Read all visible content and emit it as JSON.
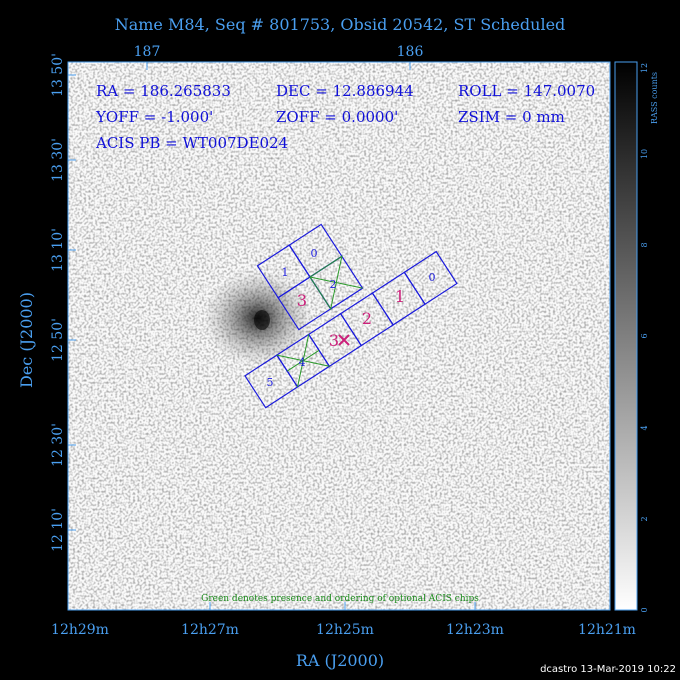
{
  "title": "Name M84, Seq # 801753, Obsid 20542, ST Scheduled",
  "info": {
    "ra": "RA = 186.265833",
    "dec": "DEC = 12.886944",
    "roll": "ROLL = 147.0070",
    "yoff": "YOFF = -1.000'",
    "zoff": "ZOFF = 0.0000'",
    "zsim": "ZSIM = 0 mm",
    "pb": "ACIS PB = WT007DE024"
  },
  "x_axis": {
    "label": "RA (J2000)",
    "bottom_ticks": [
      "12h29m",
      "12h27m",
      "12h25m",
      "12h23m",
      "12h21m"
    ],
    "top_ticks": [
      "187",
      "186"
    ]
  },
  "y_axis": {
    "label": "Dec (J2000)",
    "ticks": [
      "13 50'",
      "13 30'",
      "13 10'",
      "12 50'",
      "12 30'",
      "12 10'"
    ]
  },
  "colorbar": {
    "label": "RASS counts",
    "ticks": [
      "0",
      "2",
      "4",
      "6",
      "8",
      "10",
      "12"
    ]
  },
  "chips": {
    "acis_i": [
      "0",
      "1",
      "2",
      "3"
    ],
    "acis_s": [
      "0",
      "1",
      "2",
      "3",
      "4",
      "5"
    ]
  },
  "note": "Green denotes presence and ordering of optional ACIS chips",
  "footer": "dcastro 13-Mar-2019 10:22"
}
